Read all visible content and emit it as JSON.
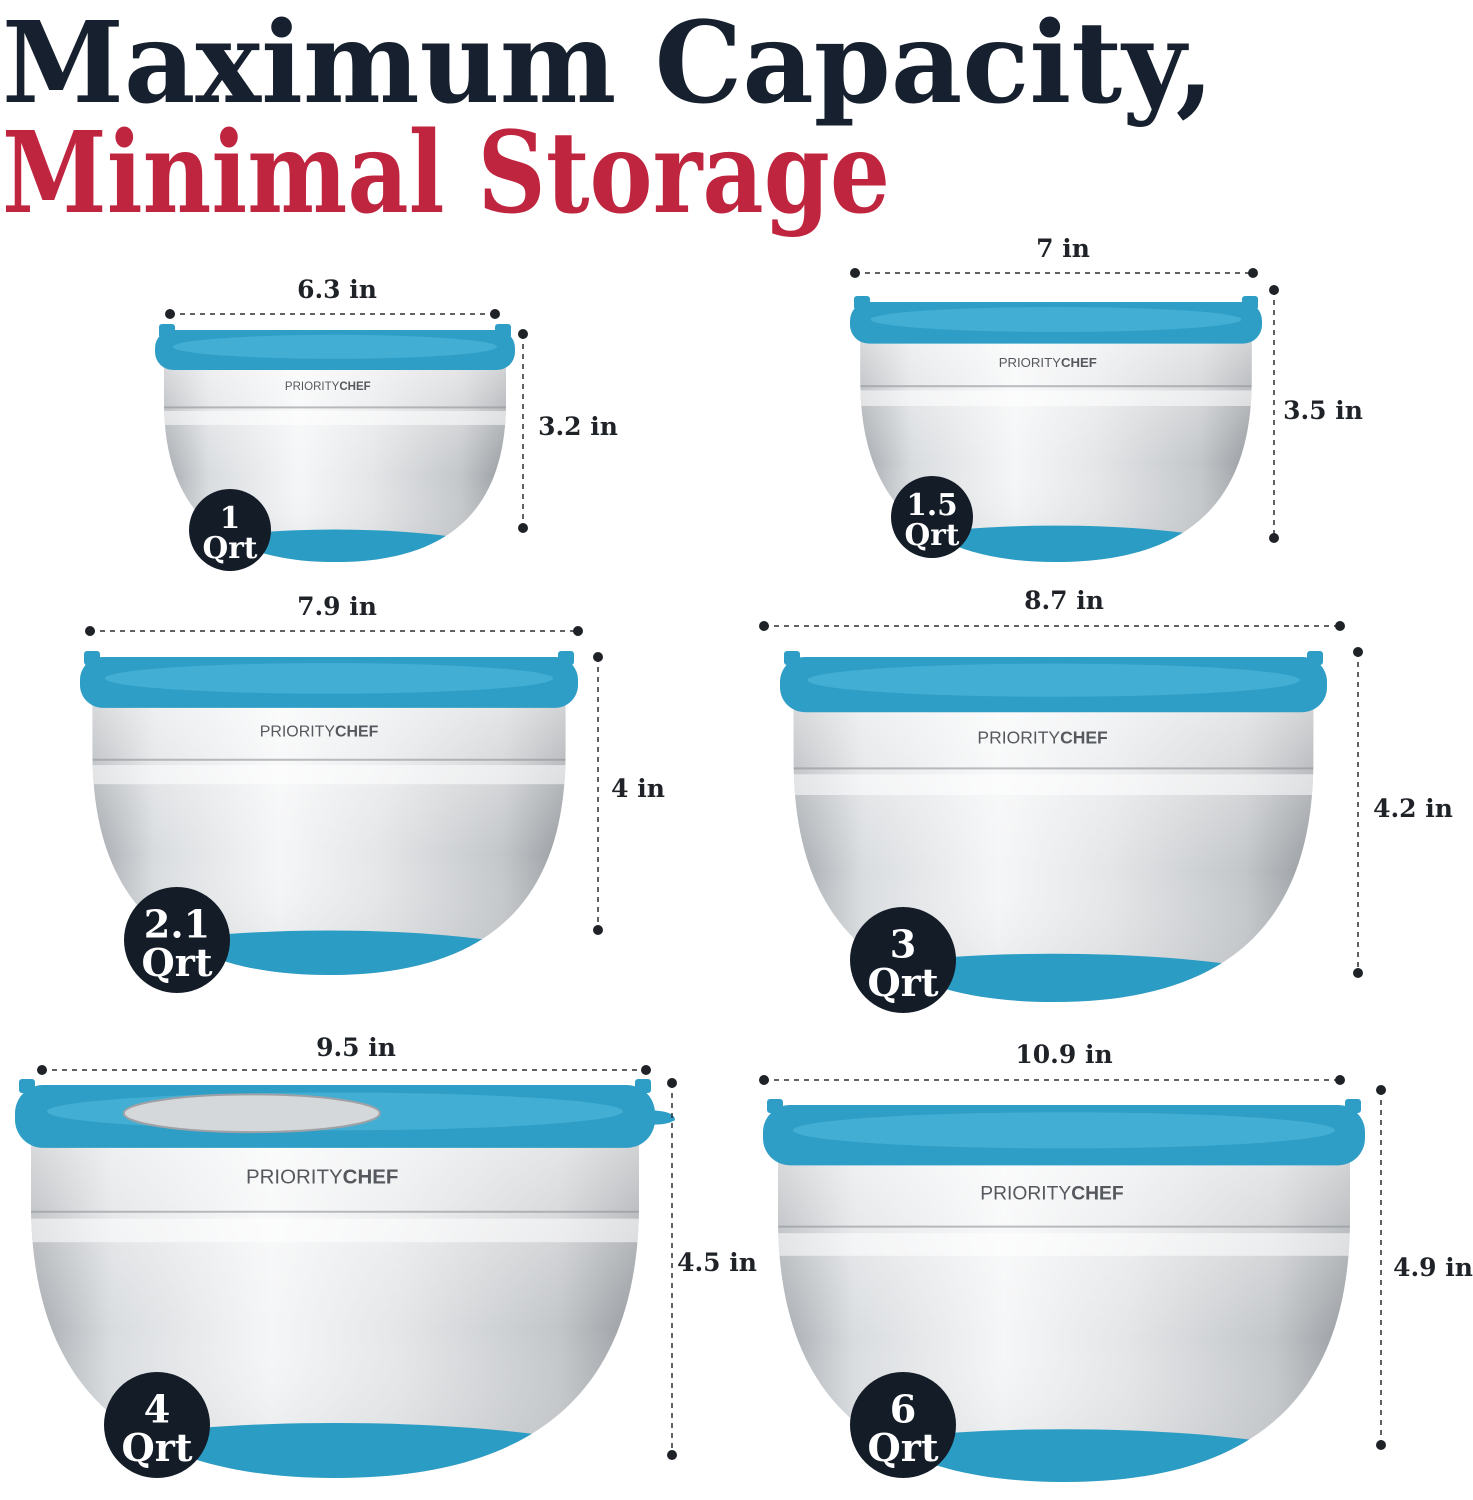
{
  "headline": {
    "line1": "Maximum Capacity,",
    "line2": "Minimal Storage",
    "line1_color": "#16202e",
    "line2_color": "#c0253f"
  },
  "brand": {
    "prefix": "PRIORITY",
    "suffix": "CHEF"
  },
  "colors": {
    "lid": "#2f9ec6",
    "lid_light": "#49b2d6",
    "base": "#2b9cc4",
    "badge": "#141c27",
    "steel_light": "#f2f3f4",
    "steel_dark": "#a9adb1"
  },
  "bowls": [
    {
      "capacity_number": "1",
      "capacity_unit": "Qrt",
      "width": "6.3 in",
      "height": "3.2 in",
      "grater": false
    },
    {
      "capacity_number": "1.5",
      "capacity_unit": "Qrt",
      "width": "7 in",
      "height": "3.5 in",
      "grater": false
    },
    {
      "capacity_number": "2.1",
      "capacity_unit": "Qrt",
      "width": "7.9 in",
      "height": "4 in",
      "grater": false
    },
    {
      "capacity_number": "3",
      "capacity_unit": "Qrt",
      "width": "8.7 in",
      "height": "4.2 in",
      "grater": false
    },
    {
      "capacity_number": "4",
      "capacity_unit": "Qrt",
      "width": "9.5 in",
      "height": "4.5 in",
      "grater": true
    },
    {
      "capacity_number": "6",
      "capacity_unit": "Qrt",
      "width": "10.9 in",
      "height": "4.9 in",
      "grater": false
    }
  ]
}
